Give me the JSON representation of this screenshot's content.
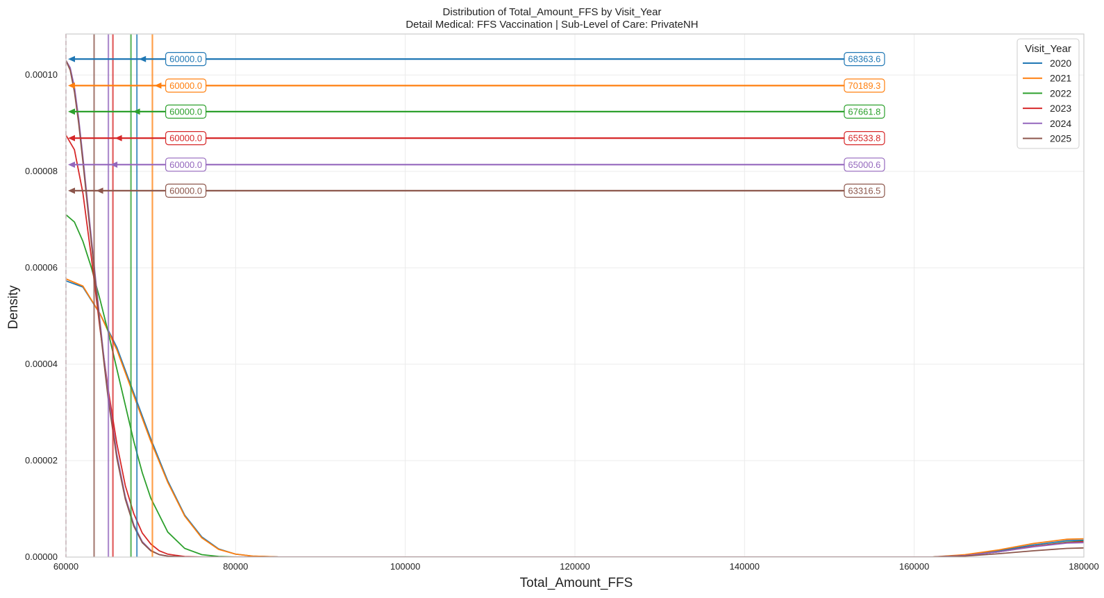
{
  "chart_data": {
    "type": "line",
    "title": "Distribution of Total_Amount_FFS by Visit_Year",
    "subtitle": "Detail Medical: FFS Vaccination | Sub-Level of Care: PrivateNH",
    "xlabel": "Total_Amount_FFS",
    "ylabel": "Density",
    "xlim": [
      60000,
      180000
    ],
    "ylim": [
      0,
      0.0001085
    ],
    "x_ticks": [
      60000,
      80000,
      100000,
      120000,
      140000,
      160000,
      180000
    ],
    "x_tick_labels": [
      "60000",
      "80000",
      "100000",
      "120000",
      "140000",
      "160000",
      "180000"
    ],
    "y_ticks": [
      0,
      2e-05,
      4e-05,
      6e-05,
      8e-05,
      0.0001
    ],
    "y_tick_labels": [
      "0.00000",
      "0.00002",
      "0.00004",
      "0.00006",
      "0.00008",
      "0.00010"
    ],
    "grid": true,
    "legend": {
      "title": "Visit_Year",
      "placement": "top-right"
    },
    "reference_line_x": 60000,
    "series": [
      {
        "name": "2020",
        "color": "#1f77b4",
        "x": [
          60000,
          62000,
          64000,
          66000,
          68000,
          70000,
          72000,
          74000,
          76000,
          78000,
          80000,
          82000,
          85000,
          90000,
          162000,
          166000,
          170000,
          174000,
          178000,
          180000
        ],
        "y": [
          5.73e-05,
          5.6e-05,
          5.05e-05,
          4.35e-05,
          3.4e-05,
          2.45e-05,
          1.58e-05,
          8.7e-06,
          4.2e-06,
          1.7e-06,
          6e-07,
          2e-07,
          3e-08,
          0,
          0,
          4e-07,
          1.3e-06,
          2.5e-06,
          3.4e-06,
          3.5e-06
        ]
      },
      {
        "name": "2021",
        "color": "#ff7f0e",
        "x": [
          60000,
          62000,
          64000,
          66000,
          68000,
          70000,
          72000,
          74000,
          76000,
          78000,
          80000,
          82000,
          85000,
          90000,
          162000,
          166000,
          170000,
          174000,
          178000,
          180000
        ],
        "y": [
          5.77e-05,
          5.62e-05,
          5.05e-05,
          4.3e-05,
          3.35e-05,
          2.4e-05,
          1.55e-05,
          8.5e-06,
          4e-06,
          1.6e-06,
          6e-07,
          2e-07,
          3e-08,
          0,
          0,
          5e-07,
          1.5e-06,
          2.8e-06,
          3.7e-06,
          3.8e-06
        ]
      },
      {
        "name": "2022",
        "color": "#2ca02c",
        "x": [
          60000,
          61000,
          62000,
          63000,
          64000,
          65000,
          66000,
          67000,
          68000,
          69000,
          70000,
          72000,
          74000,
          76000,
          78000,
          80000,
          84000,
          90000,
          162000,
          166000,
          170000,
          174000,
          178000,
          180000
        ],
        "y": [
          7.1e-05,
          6.95e-05,
          6.55e-05,
          6e-05,
          5.35e-05,
          4.65e-05,
          3.9e-05,
          3.15e-05,
          2.4e-05,
          1.75e-05,
          1.22e-05,
          5.2e-06,
          1.8e-06,
          5e-07,
          1.2e-07,
          2e-08,
          0,
          0,
          0,
          3e-07,
          1.1e-06,
          2.2e-06,
          3.1e-06,
          3.3e-06
        ]
      },
      {
        "name": "2023",
        "color": "#d62728",
        "x": [
          60000,
          61000,
          62000,
          63000,
          64000,
          65000,
          66000,
          67000,
          68000,
          69000,
          70000,
          71000,
          72000,
          74000,
          76000,
          78000,
          80000,
          84000,
          90000,
          162000,
          166000,
          170000,
          174000,
          178000,
          180000
        ],
        "y": [
          8.75e-05,
          8.45e-05,
          7.55e-05,
          6.2e-05,
          4.75e-05,
          3.45e-05,
          2.35e-05,
          1.48e-05,
          9e-06,
          5e-06,
          2.7e-06,
          1.3e-06,
          6e-07,
          1e-07,
          1e-08,
          0,
          0,
          0,
          0,
          0,
          3e-07,
          1.1e-06,
          2.2e-06,
          3e-06,
          3.2e-06
        ]
      },
      {
        "name": "2024",
        "color": "#9467bd",
        "x": [
          60000,
          60500,
          61000,
          61500,
          62000,
          62500,
          63000,
          63500,
          64000,
          64500,
          65000,
          66000,
          67000,
          68000,
          69000,
          70000,
          71000,
          72000,
          74000,
          76000,
          80000,
          90000,
          162000,
          166000,
          170000,
          174000,
          178000,
          180000
        ],
        "y": [
          0.000103,
          0.0001015,
          9.75e-05,
          9.1e-05,
          8.3e-05,
          7.45e-05,
          6.6e-05,
          5.75e-05,
          4.9e-05,
          4.1e-05,
          3.35e-05,
          2.13e-05,
          1.25e-05,
          6.7e-06,
          3.2e-06,
          1.4e-06,
          5e-07,
          2e-07,
          2e-08,
          0,
          0,
          0,
          0,
          3e-07,
          1.1e-06,
          2.1e-06,
          2.9e-06,
          3e-06
        ]
      },
      {
        "name": "2025",
        "color": "#8c564b",
        "x": [
          60000,
          60500,
          61000,
          61500,
          62000,
          62500,
          63000,
          63500,
          64000,
          64500,
          65000,
          66000,
          67000,
          68000,
          69000,
          70000,
          71000,
          72000,
          74000,
          76000,
          80000,
          90000,
          162000,
          166000,
          170000,
          174000,
          178000,
          180000
        ],
        "y": [
          0.000103,
          0.000101,
          9.65e-05,
          9e-05,
          8.2e-05,
          7.35e-05,
          6.5e-05,
          5.65e-05,
          4.8e-05,
          4e-05,
          3.25e-05,
          2.05e-05,
          1.2e-05,
          6.4e-06,
          3e-06,
          1.3e-06,
          5e-07,
          2e-07,
          2e-08,
          0,
          0,
          0,
          0,
          2e-07,
          7e-07,
          1.3e-06,
          1.8e-06,
          1.9e-06
        ]
      }
    ],
    "annotations": [
      {
        "year": "2020",
        "color": "#1f77b4",
        "y": 0.0001033,
        "min_label": "60000.0",
        "min_value": 60000,
        "mean_label": "68363.6",
        "mean_value": 68363.6
      },
      {
        "year": "2021",
        "color": "#ff7f0e",
        "y": 9.78e-05,
        "min_label": "60000.0",
        "min_value": 60000,
        "mean_label": "70189.3",
        "mean_value": 70189.3
      },
      {
        "year": "2022",
        "color": "#2ca02c",
        "y": 9.24e-05,
        "min_label": "60000.0",
        "min_value": 60000,
        "mean_label": "67661.8",
        "mean_value": 67661.8
      },
      {
        "year": "2023",
        "color": "#d62728",
        "y": 8.69e-05,
        "min_label": "60000.0",
        "min_value": 60000,
        "mean_label": "65533.8",
        "mean_value": 65533.8
      },
      {
        "year": "2024",
        "color": "#9467bd",
        "y": 8.14e-05,
        "min_label": "60000.0",
        "min_value": 60000,
        "mean_label": "65000.6",
        "mean_value": 65000.6
      },
      {
        "year": "2025",
        "color": "#8c564b",
        "y": 7.6e-05,
        "min_label": "60000.0",
        "min_value": 60000,
        "mean_label": "63316.5",
        "mean_value": 63316.5
      }
    ]
  }
}
